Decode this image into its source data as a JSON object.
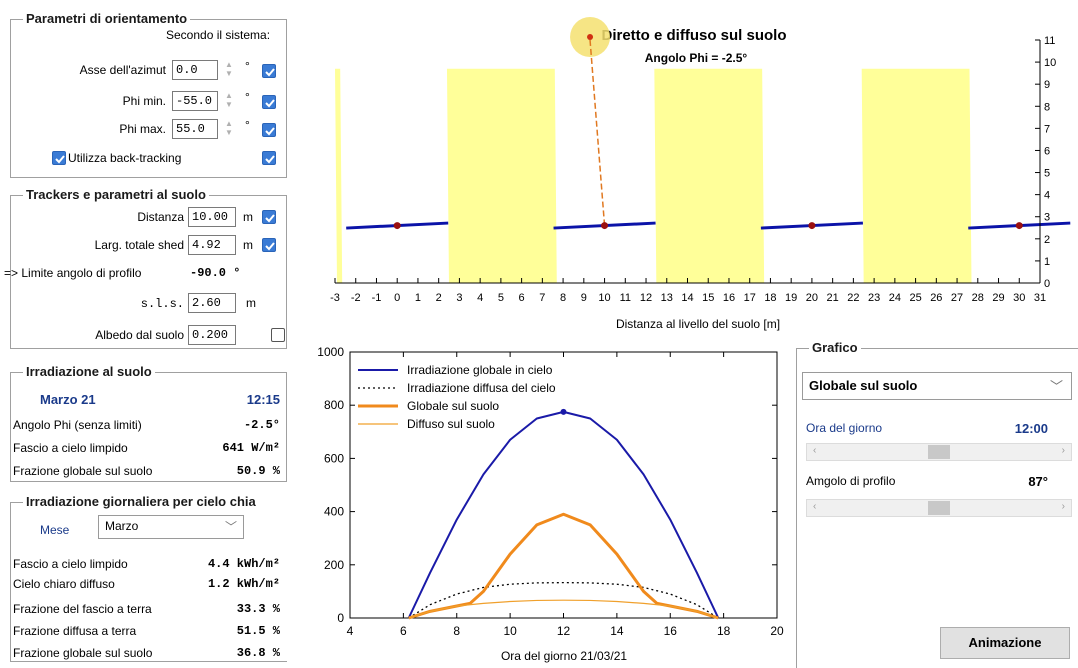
{
  "orient": {
    "title": "Parametri di orientamento",
    "system_label": "Secondo il sistema:",
    "azimuth_label": "Asse dell'azimut",
    "azimuth_value": "0.0",
    "phi_min_label": "Phi min.",
    "phi_min_value": "-55.0",
    "phi_max_label": "Phi max.",
    "phi_max_value": "55.0",
    "degree_unit": "°",
    "backtracking_label": "Utilizza back-tracking"
  },
  "trackers": {
    "title": "Trackers e parametri al suolo",
    "distance_label": "Distanza",
    "distance_value": "10.00",
    "width_label": "Larg. totale shed",
    "width_value": "4.92",
    "unit_m": "m",
    "profile_limit_label": "=> Limite angolo di profilo",
    "profile_limit_value": "-90.0 °",
    "sls_label": "s.l.s.",
    "sls_value": "2.60",
    "albedo_label": "Albedo dal suolo",
    "albedo_value": "0.200"
  },
  "irr": {
    "title": "Irradiazione al suolo",
    "date": "Marzo 21",
    "time": "12:15",
    "phi_label": "Angolo Phi (senza limiti)",
    "phi_value": "-2.5°",
    "beam_label": "Fascio a cielo limpido",
    "beam_value": "641 W/m²",
    "frac_label": "Frazione globale sul suolo",
    "frac_value": "50.9 %"
  },
  "daily": {
    "title": "Irradiazione giornaliera per cielo chia",
    "month_label": "Mese",
    "month_value": "Marzo",
    "r1_label": "Fascio a cielo limpido",
    "r1_value": "4.4 kWh/m²",
    "r2_label": "Cielo chiaro diffuso",
    "r2_value": "1.2 kWh/m²",
    "r3_label": "Frazione del fascio a terra",
    "r3_value": "33.3 %",
    "r4_label": "Frazione diffusa a terra",
    "r4_value": "51.5 %",
    "r5_label": "Frazione globale sul suolo",
    "r5_value": "36.8 %"
  },
  "grafico": {
    "title": "Grafico",
    "select_value": "Globale sul suolo",
    "hour_label": "Ora del giorno",
    "hour_value": "12:00",
    "hour_fraction": 0.5,
    "profile_label": "Amgolo di profilo",
    "profile_value": "87°",
    "profile_fraction": 0.5,
    "anim_button": "Animazione"
  },
  "top_chart": {
    "title": "Diretto e diffuso sul suolo",
    "phi_text": "Angolo Phi = -2.5°",
    "xlabel": "Distanza al livello del suolo [m]",
    "xlim": [
      -3,
      31
    ],
    "xticks": [
      "-3",
      "-2",
      "-1",
      "0",
      "1",
      "2",
      "3",
      "4",
      "5",
      "6",
      "7",
      "8",
      "9",
      "10",
      "11",
      "12",
      "13",
      "14",
      "15",
      "16",
      "17",
      "18",
      "19",
      "20",
      "21",
      "22",
      "23",
      "24",
      "25",
      "26",
      "27",
      "28",
      "29",
      "30",
      "31"
    ],
    "ylim": [
      0,
      11
    ],
    "yticks": [
      "0",
      "1",
      "2",
      "3",
      "4",
      "5",
      "6",
      "7",
      "8",
      "9",
      "10",
      "11"
    ],
    "tracker_centers": [
      0,
      10,
      20,
      30
    ],
    "shadow_bands": [
      [
        -3,
        -2.75
      ],
      [
        2.4,
        7.6
      ],
      [
        12.4,
        17.6
      ],
      [
        22.4,
        27.6
      ]
    ],
    "colors": {
      "sun": "#f5e070",
      "shadow": "#ffff99",
      "tracker": "#0b13a8",
      "axis": "#c80000"
    }
  },
  "chart_data": {
    "type": "line",
    "xlabel": "Ora del giorno 21/03/21",
    "ylabel": "",
    "xlim": [
      4,
      20
    ],
    "ylim": [
      0,
      1000
    ],
    "xticks": [
      "4",
      "6",
      "8",
      "10",
      "12",
      "14",
      "16",
      "18",
      "20"
    ],
    "yticks": [
      "0",
      "200",
      "400",
      "600",
      "800",
      "1000"
    ],
    "series": [
      {
        "name": "Irradiazione globale in cielo",
        "color": "#1a1aa8",
        "style": "solid",
        "x": [
          6.2,
          7,
          8,
          9,
          10,
          11,
          12,
          13,
          14,
          15,
          16,
          17,
          17.8
        ],
        "y": [
          0,
          170,
          370,
          540,
          670,
          750,
          775,
          750,
          670,
          540,
          370,
          170,
          0
        ]
      },
      {
        "name": "Irradiazione diffusa del cielo",
        "color": "#000000",
        "style": "dotted",
        "x": [
          6.2,
          7,
          8,
          9,
          10,
          11,
          12,
          13,
          14,
          15,
          16,
          17,
          17.8
        ],
        "y": [
          0,
          50,
          90,
          115,
          127,
          132,
          133,
          132,
          127,
          115,
          90,
          50,
          0
        ]
      },
      {
        "name": "Globale sul suolo",
        "color": "#f08a1c",
        "style": "thick",
        "x": [
          6.2,
          7,
          8,
          8.5,
          9,
          10,
          11,
          12,
          13,
          14,
          15,
          15.5,
          16,
          17,
          17.8
        ],
        "y": [
          0,
          25,
          45,
          55,
          100,
          240,
          350,
          390,
          350,
          240,
          100,
          55,
          45,
          25,
          0
        ]
      },
      {
        "name": "Diffuso sul suolo",
        "color": "#f0a02c",
        "style": "thin",
        "x": [
          6.2,
          7,
          8,
          9,
          10,
          11,
          12,
          13,
          14,
          15,
          16,
          17,
          17.8
        ],
        "y": [
          0,
          25,
          45,
          55,
          62,
          66,
          67,
          66,
          62,
          55,
          45,
          25,
          0
        ]
      }
    ],
    "marker": {
      "x": 12,
      "y": 775
    }
  }
}
